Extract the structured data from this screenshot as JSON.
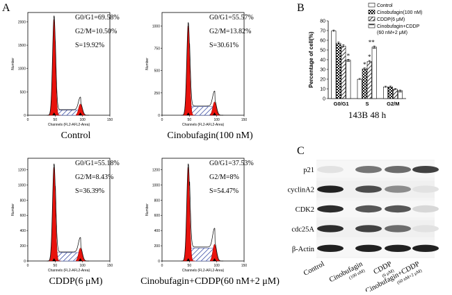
{
  "panel_labels": {
    "a": "A",
    "b": "B",
    "c": "C"
  },
  "flow_axis": {
    "xlabel": "Channels (FL2-AFL2-Area)",
    "ylabel": "Number",
    "xticks": [
      "0",
      "50",
      "100",
      "150"
    ]
  },
  "histograms": [
    {
      "caption": "Control",
      "g0g1": "G0/G1=69.58%",
      "g2m": "G2/M=10.50%",
      "s": "S=19.92%",
      "yticks": [
        "0",
        "500",
        "1000",
        "1500",
        "2000"
      ],
      "ymax": 2200,
      "g1_peak": 2050,
      "g2_peak": 240,
      "s_level": 110
    },
    {
      "caption": "Cinobufagin(100 nM)",
      "g0g1": "G0/G1=55.57%",
      "g2m": "G2/M=13.82%",
      "s": "S=30.61%",
      "yticks": [
        "0",
        "250",
        "500",
        "750",
        "1000"
      ],
      "ymax": 1150,
      "g1_peak": 1000,
      "g2_peak": 150,
      "s_level": 95
    },
    {
      "caption": "CDDP(6 μM)",
      "g0g1": "G0/G1=55.18%",
      "g2m": "G2/M=8.43%",
      "s": "S=36.39%",
      "yticks": [
        "0",
        "200",
        "400",
        "600",
        "800",
        "1000",
        "1200"
      ],
      "ymax": 1350,
      "g1_peak": 1230,
      "g2_peak": 170,
      "s_level": 110
    },
    {
      "caption": "Cinobufagin+CDDP(60 nM+2 μM)",
      "g0g1": "G0/G1=37.53%",
      "g2m": "G2/M=8%",
      "s": "S=54.47%",
      "yticks": [
        "0",
        "200",
        "400",
        "600",
        "800",
        "1000",
        "1200"
      ],
      "ymax": 1350,
      "g1_peak": 1230,
      "g2_peak": 220,
      "s_level": 170
    }
  ],
  "chart_data": {
    "type": "bar",
    "categories": [
      "G0/G1",
      "S",
      "G2/M"
    ],
    "ylabel": "Percentage of cell(%)",
    "xlabel": "143B  48 h",
    "ylim": [
      0,
      80
    ],
    "yticks": [
      "0",
      "10",
      "20",
      "30",
      "40",
      "50",
      "60",
      "70",
      "80"
    ],
    "series": [
      {
        "name": "Control",
        "values": [
          69.6,
          19.9,
          12.0
        ],
        "errors": [
          1.0,
          0.8,
          0.8
        ]
      },
      {
        "name": "Cinobufagin(100 nM)",
        "values": [
          57.0,
          30.6,
          12.0
        ],
        "errors": [
          1.2,
          1.0,
          0.9
        ]
      },
      {
        "name": "CDDP(6 μM)",
        "values": [
          54.0,
          38.0,
          9.5
        ],
        "errors": [
          1.5,
          1.2,
          0.8
        ]
      },
      {
        "name": "Cinobufagin+CDDP (60 nM+2 μM)",
        "values": [
          39.5,
          53.0,
          8.0
        ],
        "errors": [
          1.0,
          1.2,
          0.7
        ]
      }
    ],
    "significance": [
      {
        "category": "G0/G1",
        "series": 3,
        "label": "*"
      },
      {
        "category": "S",
        "series": 1,
        "label": "*"
      },
      {
        "category": "S",
        "series": 2,
        "label": "*"
      },
      {
        "category": "S",
        "series": 3,
        "label": "**"
      }
    ]
  },
  "legend_lines": {
    "s0": "Control",
    "s1": "Cinobufagin(100 nM)",
    "s2": "CDDP(6 μM)",
    "s3a": "Cinobufagin+CDDP",
    "s3b": "(60 nM+2 μM)"
  },
  "western_blot": {
    "proteins": [
      "p21",
      "cyclinA2",
      "CDK2",
      "cdc25A",
      "β-Actin"
    ],
    "lanes": [
      "Control",
      "Cinobufagin",
      "CDDP",
      "Cinobufagin+CDDP"
    ],
    "lane_subs": [
      "",
      "(100 nM)",
      "(6 μM)",
      "(60 nM+2 μM)"
    ],
    "intensity": [
      [
        0.05,
        0.55,
        0.6,
        0.8
      ],
      [
        0.95,
        0.75,
        0.45,
        0.05
      ],
      [
        0.9,
        0.7,
        0.7,
        0.1
      ],
      [
        0.9,
        0.8,
        0.6,
        0.05
      ],
      [
        0.95,
        0.95,
        0.95,
        0.95
      ]
    ]
  }
}
